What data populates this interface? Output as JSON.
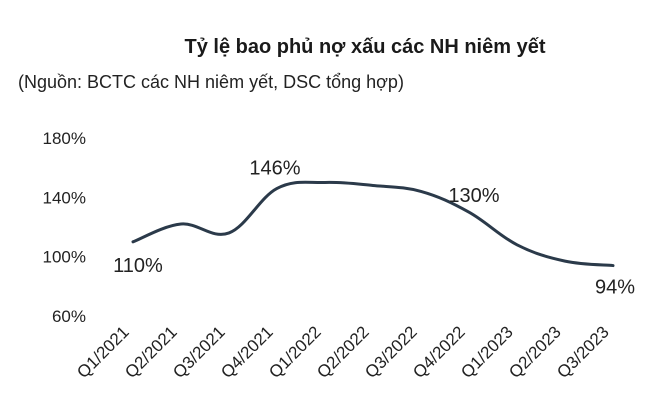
{
  "title": "Tỷ lệ bao phủ nợ xấu các NH niêm yết",
  "subtitle": "(Nguồn: BCTC các NH niêm yết, DSC tổng hợp)",
  "colors": {
    "line": "#2b3a4a",
    "text": "#1a1a1a"
  },
  "chart_data": {
    "type": "line",
    "title": "Tỷ lệ bao phủ nợ xấu các NH niêm yết",
    "subtitle": "(Nguồn: BCTC các NH niêm yết, DSC tổng hợp)",
    "xlabel": "",
    "ylabel": "",
    "categories": [
      "Q1/2021",
      "Q2/2021",
      "Q3/2021",
      "Q4/2021",
      "Q1/2022",
      "Q2/2022",
      "Q3/2022",
      "Q4/2022",
      "Q1/2023",
      "Q2/2023",
      "Q3/2023"
    ],
    "series": [
      {
        "values": [
          110,
          122,
          116,
          146,
          150,
          148,
          144,
          130,
          108,
          97,
          94
        ]
      }
    ],
    "data_labels": [
      {
        "index": 0,
        "text": "110%"
      },
      {
        "index": 3,
        "text": "146%"
      },
      {
        "index": 7,
        "text": "130%"
      },
      {
        "index": 10,
        "text": "94%"
      }
    ],
    "ylim": [
      60,
      180
    ],
    "yticks": [
      "60%",
      "100%",
      "140%",
      "180%"
    ],
    "ytick_values": [
      60,
      100,
      140,
      180
    ],
    "grid": false,
    "legend": "none"
  }
}
